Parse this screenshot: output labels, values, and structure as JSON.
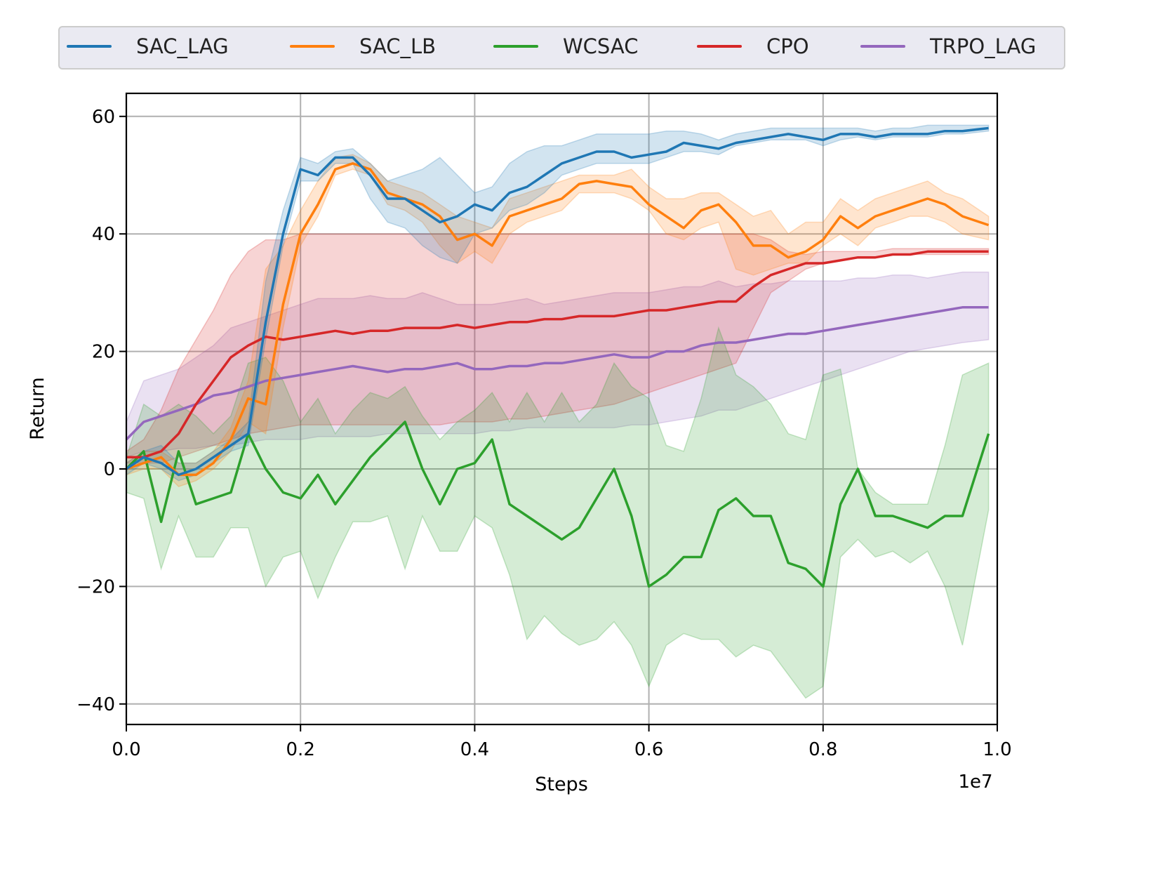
{
  "chart_data": {
    "type": "line",
    "title": "",
    "xlabel": "Steps",
    "ylabel": "Return",
    "x_scale_label": "1e7",
    "xlim": [
      0.0,
      1.0
    ],
    "ylim": [
      -43.5,
      64
    ],
    "x_ticks": [
      "0.0",
      "0.2",
      "0.4",
      "0.6",
      "0.8",
      "1.0"
    ],
    "x_tick_values": [
      0.0,
      0.2,
      0.4,
      0.6,
      0.8,
      1.0
    ],
    "y_ticks": [
      "−40",
      "−20",
      "0",
      "20",
      "40",
      "60"
    ],
    "y_tick_values": [
      -40,
      -20,
      0,
      20,
      40,
      60
    ],
    "grid": true,
    "legend_position": "top-center-outside",
    "x": [
      0.0,
      0.02,
      0.04,
      0.06,
      0.08,
      0.1,
      0.12,
      0.14,
      0.16,
      0.18,
      0.2,
      0.22,
      0.24,
      0.26,
      0.28,
      0.3,
      0.32,
      0.34,
      0.36,
      0.38,
      0.4,
      0.42,
      0.44,
      0.46,
      0.48,
      0.5,
      0.52,
      0.54,
      0.56,
      0.58,
      0.6,
      0.62,
      0.64,
      0.66,
      0.68,
      0.7,
      0.72,
      0.74,
      0.76,
      0.78,
      0.8,
      0.82,
      0.84,
      0.86,
      0.88,
      0.9,
      0.92,
      0.94,
      0.96,
      0.99
    ],
    "series": [
      {
        "name": "SAC_LAG",
        "color": "#1f77b4",
        "values": [
          0,
          2,
          1,
          -1,
          0,
          2,
          4,
          6,
          25,
          40,
          51,
          50,
          53,
          53,
          50,
          46,
          46,
          44,
          42,
          43,
          45,
          44,
          47,
          48,
          50,
          52,
          53,
          54,
          54,
          53,
          53.5,
          54,
          55.5,
          55,
          54.5,
          55.5,
          56,
          56.5,
          57,
          56.5,
          56,
          57,
          57,
          56.5,
          57,
          57,
          57,
          57.5,
          57.5,
          58
        ],
        "lower": [
          -1,
          1,
          0,
          -2,
          -1,
          1,
          3,
          4,
          22,
          38,
          49,
          49,
          52,
          52,
          46,
          42,
          41,
          38,
          36,
          35,
          40,
          41,
          44,
          45,
          47,
          50,
          51,
          52,
          52,
          52,
          52,
          53,
          54,
          54,
          53.5,
          55,
          55.5,
          56,
          56,
          56,
          55,
          56,
          56.5,
          56,
          56.5,
          56.5,
          56.5,
          57,
          57,
          57.5
        ],
        "upper": [
          1,
          3,
          4,
          1,
          1,
          3,
          5,
          8,
          32,
          44,
          53,
          52,
          54,
          54.5,
          52,
          49,
          50,
          51,
          53,
          50,
          47,
          48,
          52,
          54,
          55,
          55,
          56,
          57,
          57,
          57,
          57,
          57.5,
          57.5,
          57,
          56,
          57,
          57.5,
          58,
          58,
          58,
          58,
          58,
          58,
          57.5,
          58,
          58,
          58.5,
          58.5,
          58.5,
          58.5
        ]
      },
      {
        "name": "SAC_LB",
        "color": "#ff7f0e",
        "values": [
          0,
          1,
          2,
          -1,
          -1,
          1,
          5,
          12,
          11,
          28,
          40,
          45,
          51,
          52,
          51,
          47,
          46,
          45,
          43,
          39,
          40,
          38,
          43,
          44,
          45,
          46,
          48.5,
          49,
          48.5,
          48,
          45,
          43,
          41,
          44,
          45,
          42,
          38,
          38,
          36,
          37,
          39,
          43,
          41,
          43,
          44,
          45,
          46,
          45,
          43,
          41.5
        ],
        "lower": [
          -1,
          0,
          0,
          -3,
          -2,
          0,
          3,
          8,
          6,
          24,
          38,
          43,
          50,
          51,
          50,
          45,
          44,
          42,
          38,
          35,
          37,
          35,
          40,
          42,
          43,
          44,
          47,
          47,
          47,
          46,
          44,
          40,
          39,
          41,
          42,
          34,
          33,
          34,
          35,
          35,
          38,
          40,
          38,
          41,
          42,
          43,
          43,
          42,
          40,
          39
        ],
        "upper": [
          1,
          3,
          3,
          1,
          1,
          3,
          7,
          15,
          34,
          38,
          44,
          49,
          53,
          53.5,
          52,
          49,
          48,
          47,
          45,
          43,
          42,
          41,
          46,
          47,
          48,
          49,
          50,
          50,
          50,
          51,
          48,
          46,
          46,
          47,
          47,
          45,
          43,
          44,
          40,
          42,
          42,
          46,
          44,
          46,
          47,
          48,
          49,
          47,
          46,
          43
        ]
      },
      {
        "name": "WCSAC",
        "color": "#2ca02c",
        "values": [
          0,
          3,
          -9,
          3,
          -6,
          -5,
          -4,
          6,
          0,
          -4,
          -5,
          -1,
          -6,
          -2,
          2,
          5,
          8,
          0,
          -6,
          0,
          1,
          5,
          -6,
          -8,
          -10,
          -12,
          -10,
          -5,
          0,
          -8,
          -20,
          -18,
          -15,
          -15,
          -7,
          -5,
          -8,
          -8,
          -16,
          -17,
          -20,
          -6,
          0,
          -8,
          -8,
          -9,
          -10,
          -8,
          -8,
          6
        ],
        "lower": [
          -4,
          -5,
          -17,
          -8,
          -15,
          -15,
          -10,
          -10,
          -20,
          -15,
          -14,
          -22,
          -15,
          -9,
          -9,
          -8,
          -17,
          -8,
          -14,
          -14,
          -8,
          -10,
          -18,
          -29,
          -25,
          -28,
          -30,
          -29,
          -26,
          -30,
          -37,
          -30,
          -28,
          -29,
          -29,
          -32,
          -30,
          -31,
          -35,
          -39,
          -37,
          -15,
          -12,
          -15,
          -14,
          -16,
          -14,
          -20,
          -30,
          -7
        ],
        "upper": [
          2,
          11,
          9,
          11,
          9,
          6,
          9,
          18,
          19,
          15,
          8,
          12,
          6,
          10,
          13,
          12,
          14,
          9,
          5,
          8,
          10,
          13,
          8,
          13,
          8,
          13,
          8,
          11,
          18,
          14,
          12,
          4,
          3,
          12,
          24,
          16,
          14,
          11,
          6,
          5,
          16,
          17,
          0,
          -4,
          -6,
          -6,
          -6,
          4,
          16,
          18
        ]
      },
      {
        "name": "CPO",
        "color": "#d62728",
        "values": [
          2,
          2,
          3,
          6,
          11,
          15,
          19,
          21,
          22.5,
          22,
          22.5,
          23,
          23.5,
          23,
          23.5,
          23.5,
          24,
          24,
          24,
          24.5,
          24,
          24.5,
          25,
          25,
          25.5,
          25.5,
          26,
          26,
          26,
          26.5,
          27,
          27,
          27.5,
          28,
          28.5,
          28.5,
          31,
          33,
          34,
          35,
          35,
          35.5,
          36,
          36,
          36.5,
          36.5,
          37,
          37,
          37,
          37
        ],
        "lower": [
          1,
          1,
          1,
          2,
          3,
          4,
          5,
          6,
          6.5,
          7,
          7.5,
          7.5,
          7.5,
          7.5,
          7.5,
          7.5,
          7.5,
          7.5,
          7.5,
          8,
          8,
          8,
          8.5,
          8.5,
          9,
          9.5,
          10,
          10.5,
          11,
          12,
          13,
          14,
          15,
          16,
          17,
          18,
          24,
          30,
          32,
          34,
          35,
          35.5,
          36,
          36,
          36.5,
          36.5,
          36.5,
          36.5,
          36.5,
          36.5
        ],
        "upper": [
          3,
          5,
          10,
          17,
          22,
          27,
          33,
          37,
          39,
          39,
          40,
          40,
          40,
          40,
          40,
          40,
          40,
          40,
          40,
          40,
          40,
          40,
          40,
          40,
          40,
          40,
          40,
          40,
          40,
          40,
          40,
          40,
          40,
          40,
          40,
          40,
          40,
          39,
          37,
          36.5,
          37,
          37,
          37,
          37,
          37.5,
          37.5,
          37.5,
          37.5,
          37.5,
          37.5
        ]
      },
      {
        "name": "TRPO_LAG",
        "color": "#9467bd",
        "values": [
          5,
          8,
          9,
          10,
          11,
          12.5,
          13,
          14,
          15,
          15.5,
          16,
          16.5,
          17,
          17.5,
          17,
          16.5,
          17,
          17,
          17.5,
          18,
          17,
          17,
          17.5,
          17.5,
          18,
          18,
          18.5,
          19,
          19.5,
          19,
          19,
          20,
          20,
          21,
          21.5,
          21.5,
          22,
          22.5,
          23,
          23,
          23.5,
          24,
          24.5,
          25,
          25.5,
          26,
          26.5,
          27,
          27.5,
          27.5
        ],
        "lower": [
          2,
          3,
          3,
          3.5,
          3.5,
          4,
          4,
          4.5,
          5,
          5,
          5,
          5.5,
          5.5,
          5.5,
          5.5,
          6,
          6,
          6,
          6,
          6,
          6,
          6.5,
          6.5,
          7,
          7,
          7,
          7,
          7,
          7,
          7.5,
          7.5,
          8,
          8.5,
          9,
          10,
          10,
          11,
          12,
          13,
          14,
          15,
          16,
          17,
          18,
          19,
          20,
          20.5,
          21,
          21.5,
          22
        ],
        "upper": [
          8,
          15,
          16,
          17,
          19,
          21,
          24,
          25,
          26,
          27,
          28,
          29,
          29,
          29,
          29.5,
          29,
          29,
          30,
          29,
          28,
          28,
          28,
          28.5,
          29,
          28,
          28.5,
          29,
          29.5,
          30,
          30,
          30,
          30.5,
          31,
          31,
          32,
          31,
          31.5,
          31.5,
          32,
          32,
          32,
          32,
          32.5,
          32.5,
          33,
          33,
          32.5,
          33,
          33.5,
          33.5
        ]
      }
    ]
  }
}
